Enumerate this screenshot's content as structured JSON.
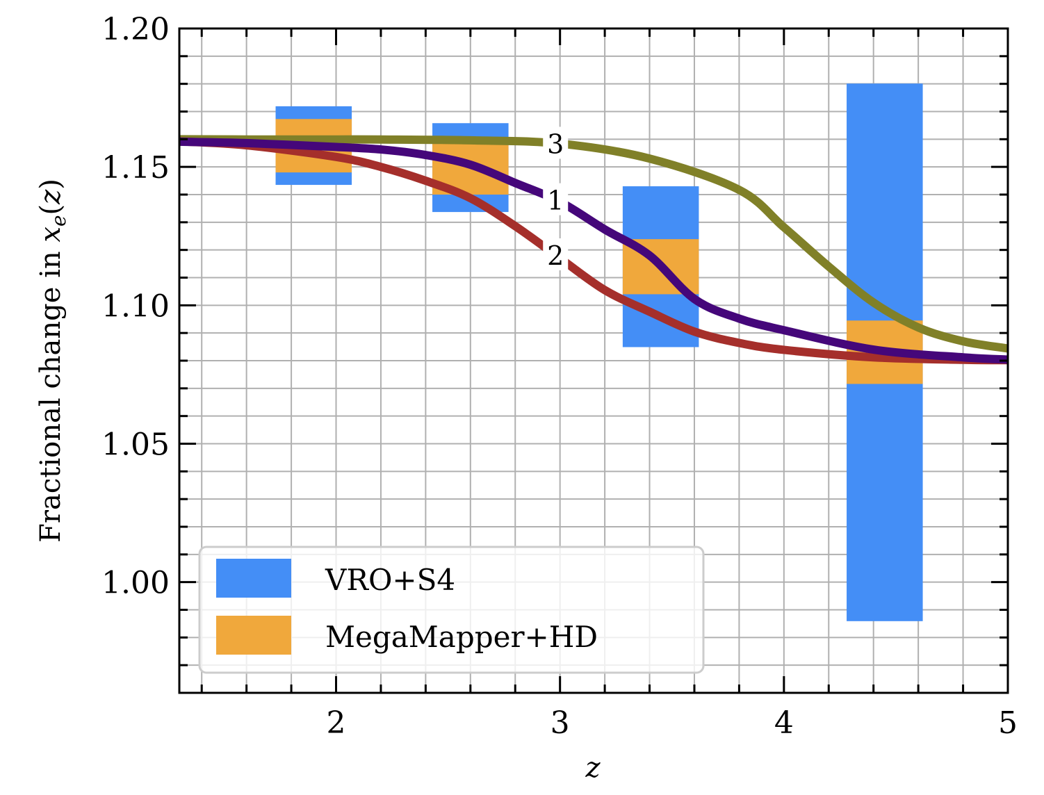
{
  "chart_data": {
    "type": "line",
    "title": "",
    "xlabel": "z",
    "ylabel_parts": {
      "prefix": "Fractional change in ",
      "var": "x",
      "sub": "e",
      "open": "(",
      "arg": "z",
      "close": ")"
    },
    "xlim": [
      1.3,
      5.0
    ],
    "ylim": [
      0.96,
      1.2
    ],
    "x_major_ticks": [
      2,
      3,
      4,
      5
    ],
    "x_tick_labels": [
      "2",
      "3",
      "4",
      "5"
    ],
    "x_minor_step": 0.2,
    "y_major_ticks": [
      1.0,
      1.05,
      1.1,
      1.15,
      1.2
    ],
    "y_tick_labels": [
      "1.00",
      "1.05",
      "1.10",
      "1.15",
      "1.20"
    ],
    "y_minor_step": 0.01,
    "grid": true,
    "legend": {
      "placement": "lower-left",
      "entries": [
        {
          "label": "VRO+S4",
          "color": "#448EF6"
        },
        {
          "label": "MegaMapper+HD",
          "color": "#F0A83C"
        }
      ]
    },
    "boxes": [
      {
        "series": "VRO+S4",
        "z_min": 1.73,
        "z_max": 2.07,
        "y_min": 1.1435,
        "y_max": 1.1719
      },
      {
        "series": "MegaMapper+HD",
        "z_min": 1.73,
        "z_max": 2.07,
        "y_min": 1.148,
        "y_max": 1.1673
      },
      {
        "series": "VRO+S4",
        "z_min": 2.43,
        "z_max": 2.77,
        "y_min": 1.1337,
        "y_max": 1.1658
      },
      {
        "series": "MegaMapper+HD",
        "z_min": 2.43,
        "z_max": 2.77,
        "y_min": 1.14,
        "y_max": 1.1594
      },
      {
        "series": "VRO+S4",
        "z_min": 3.28,
        "z_max": 3.62,
        "y_min": 1.0849,
        "y_max": 1.143
      },
      {
        "series": "MegaMapper+HD",
        "z_min": 3.28,
        "z_max": 3.62,
        "y_min": 1.104,
        "y_max": 1.1239
      },
      {
        "series": "VRO+S4",
        "z_min": 4.28,
        "z_max": 4.62,
        "y_min": 0.9859,
        "y_max": 1.1801
      },
      {
        "series": "MegaMapper+HD",
        "z_min": 4.28,
        "z_max": 4.62,
        "y_min": 1.0716,
        "y_max": 1.0945
      }
    ],
    "series": [
      {
        "name": "3",
        "label": "3",
        "color": "#808028",
        "x": [
          1.3,
          1.6,
          2.0,
          2.2,
          2.6,
          3.0,
          3.4,
          3.8,
          4.0,
          4.2,
          4.4,
          4.6,
          4.8,
          5.0
        ],
        "y": [
          1.16,
          1.1599,
          1.1599,
          1.1599,
          1.1596,
          1.1584,
          1.153,
          1.1417,
          1.1282,
          1.114,
          1.101,
          1.092,
          1.087,
          1.0844
        ]
      },
      {
        "name": "2",
        "label": "2",
        "color": "#A52F2B",
        "x": [
          1.3,
          1.6,
          2.0,
          2.2,
          2.4,
          2.6,
          2.8,
          3.0,
          3.2,
          3.4,
          3.6,
          3.8,
          4.0,
          4.4,
          4.8,
          5.0
        ],
        "y": [
          1.1592,
          1.1578,
          1.1536,
          1.15,
          1.145,
          1.1387,
          1.1286,
          1.117,
          1.1055,
          1.0977,
          1.0905,
          1.0864,
          1.0839,
          1.0812,
          1.0803,
          1.0802
        ]
      },
      {
        "name": "1",
        "label": "1",
        "color": "#45077A",
        "x": [
          1.3,
          1.6,
          2.0,
          2.2,
          2.4,
          2.6,
          2.8,
          3.0,
          3.2,
          3.4,
          3.6,
          3.8,
          4.0,
          4.4,
          4.8,
          5.0
        ],
        "y": [
          1.1591,
          1.1586,
          1.1572,
          1.1563,
          1.1543,
          1.1508,
          1.1442,
          1.1374,
          1.1274,
          1.118,
          1.1023,
          1.0952,
          1.091,
          1.084,
          1.0812,
          1.0804
        ]
      }
    ],
    "curve_label_z": 2.98
  }
}
